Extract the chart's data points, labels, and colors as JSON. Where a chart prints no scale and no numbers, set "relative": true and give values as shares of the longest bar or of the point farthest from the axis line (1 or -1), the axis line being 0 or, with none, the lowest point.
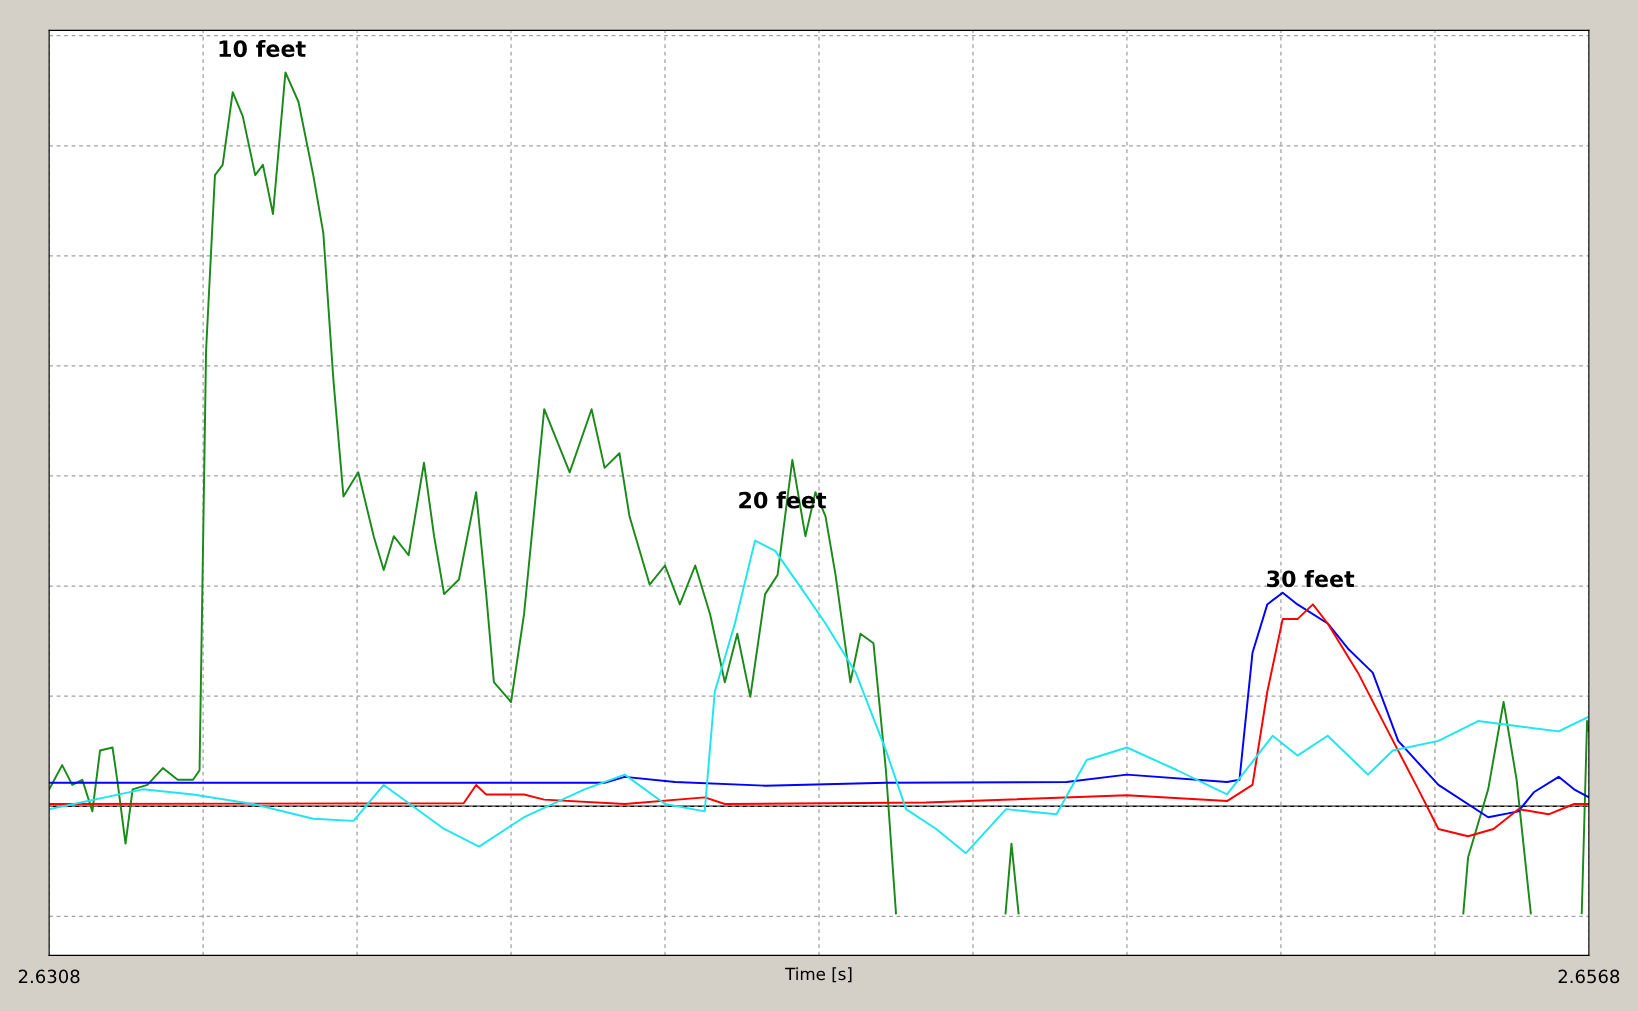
{
  "chart_data": {
    "type": "line",
    "relative": true,
    "xlabel": "Time [s]",
    "xlim": [
      2.6308,
      2.6568
    ],
    "xticks": [
      2.6308,
      {
        "value": 2.6334,
        "label": null
      },
      {
        "value": 2.636,
        "label": null
      },
      {
        "value": 2.6386,
        "label": null
      },
      {
        "value": 2.6412,
        "label": null
      },
      {
        "value": 2.6438,
        "label": null
      },
      {
        "value": 2.6464,
        "label": null
      },
      {
        "value": 2.649,
        "label": null
      },
      {
        "value": 2.6516,
        "label": null
      },
      {
        "value": 2.6542,
        "label": null
      },
      2.6568
    ],
    "grid": true,
    "legend": false,
    "line_style": "solid",
    "marker": "none",
    "ref_lines": [
      {
        "axis": "y",
        "value": 0,
        "color": "#000000"
      }
    ],
    "annotations": [
      "10 feet",
      "20 feet",
      "30 feet"
    ],
    "series": [
      {
        "color": "#1a8a1a",
        "x": [
          2.6308,
          2.63102,
          2.63119,
          2.63136,
          2.63153,
          2.63166,
          2.63187,
          2.63195,
          2.63209,
          2.63221,
          2.63246,
          2.63272,
          2.63297,
          2.63323,
          2.63334,
          2.63345,
          2.6336,
          2.63373,
          2.6339,
          2.63407,
          2.63428,
          2.63441,
          2.63458,
          2.63479,
          2.63501,
          2.63526,
          2.63543,
          2.6356,
          2.63577,
          2.63602,
          2.63628,
          2.63645,
          2.63662,
          2.63687,
          2.63713,
          2.6373,
          2.63747,
          2.63772,
          2.63801,
          2.63818,
          2.63831,
          2.6386,
          2.63882,
          2.63916,
          2.63959,
          2.63996,
          2.64018,
          2.64043,
          2.6406,
          2.64094,
          2.6412,
          2.64145,
          2.64171,
          2.64196,
          2.64221,
          2.64242,
          2.64264,
          2.64289,
          2.6431,
          2.64335,
          2.64357,
          2.64374,
          2.64391,
          2.64408,
          2.64433,
          2.6445,
          2.64472,
          2.64493,
          2.6451,
          2.64561,
          2.64695,
          2.64705,
          2.64717,
          2.65069,
          2.65468,
          2.65476,
          2.6551,
          2.65536,
          2.65558,
          2.65582,
          2.65629,
          2.65668,
          2.65677,
          2.6568
        ],
        "values": [
          0.023,
          0.056,
          0.029,
          0.036,
          -0.007,
          0.076,
          0.08,
          0.036,
          -0.051,
          0.023,
          0.029,
          0.052,
          0.036,
          0.036,
          0.049,
          0.621,
          0.86,
          0.874,
          0.973,
          0.94,
          0.86,
          0.874,
          0.807,
          1.0,
          0.96,
          0.86,
          0.781,
          0.581,
          0.422,
          0.455,
          0.368,
          0.322,
          0.368,
          0.342,
          0.468,
          0.368,
          0.289,
          0.309,
          0.428,
          0.289,
          0.169,
          0.142,
          0.262,
          0.541,
          0.455,
          0.541,
          0.461,
          0.481,
          0.395,
          0.302,
          0.328,
          0.275,
          0.328,
          0.262,
          0.169,
          0.235,
          0.149,
          0.289,
          0.315,
          0.472,
          0.368,
          0.428,
          0.395,
          0.315,
          0.169,
          0.235,
          0.222,
          0.049,
          -0.146,
          null,
          -0.146,
          -0.051,
          -0.146,
          null,
          -0.146,
          -0.07,
          0.023,
          0.142,
          0.036,
          -0.146,
          null,
          -0.146,
          0.116,
          0.102
        ]
      },
      {
        "color": "#0000ff",
        "x": [
          2.6308,
          2.64018,
          2.64052,
          2.64137,
          2.64289,
          2.64493,
          2.64798,
          2.649,
          2.65069,
          2.6509,
          2.65112,
          2.65137,
          2.65163,
          2.65188,
          2.65239,
          2.65273,
          2.65315,
          2.65358,
          2.65426,
          2.6551,
          2.65561,
          2.65587,
          2.65629,
          2.65655,
          2.6568
        ],
        "values": [
          0.032,
          0.032,
          0.04,
          0.033,
          0.028,
          0.032,
          0.033,
          0.043,
          0.033,
          0.036,
          0.209,
          0.275,
          0.291,
          0.275,
          0.249,
          0.215,
          0.182,
          0.089,
          0.029,
          -0.015,
          -0.007,
          0.019,
          0.04,
          0.023,
          0.012
        ]
      },
      {
        "color": "#ff0000",
        "x": [
          2.6308,
          2.6378,
          2.63801,
          2.63818,
          2.63882,
          2.63916,
          2.64052,
          2.64187,
          2.64221,
          2.64561,
          2.649,
          2.65069,
          2.65112,
          2.65137,
          2.65163,
          2.65188,
          2.65214,
          2.65239,
          2.6529,
          2.65341,
          2.65392,
          2.65426,
          2.65476,
          2.65519,
          2.65561,
          2.65612,
          2.65655,
          2.6568
        ],
        "values": [
          0.003,
          0.004,
          0.029,
          0.016,
          0.016,
          0.009,
          0.003,
          0.012,
          0.003,
          0.005,
          0.015,
          0.007,
          0.029,
          0.156,
          0.255,
          0.255,
          0.275,
          0.249,
          0.182,
          0.102,
          0.023,
          -0.031,
          -0.041,
          -0.031,
          -0.004,
          -0.011,
          0.003,
          0.003
        ]
      },
      {
        "color": "#1ee6ee",
        "x": [
          2.6308,
          2.63238,
          2.63323,
          2.63424,
          2.63526,
          2.63594,
          2.63645,
          2.63747,
          2.63806,
          2.63882,
          2.63984,
          2.64052,
          2.6412,
          2.64187,
          2.64204,
          2.64238,
          2.64272,
          2.64306,
          2.64357,
          2.64391,
          2.64442,
          2.64493,
          2.64527,
          2.64578,
          2.64628,
          2.64696,
          2.64781,
          2.64832,
          2.649,
          2.64985,
          2.65069,
          2.65146,
          2.65188,
          2.65239,
          2.65307,
          2.65349,
          2.65426,
          2.65493,
          2.65561,
          2.65629,
          2.6568
        ],
        "values": [
          -0.004,
          0.023,
          0.016,
          0.003,
          -0.017,
          -0.02,
          0.029,
          -0.031,
          -0.055,
          -0.015,
          0.023,
          0.043,
          0.003,
          -0.007,
          0.156,
          0.249,
          0.362,
          0.348,
          0.289,
          0.249,
          0.182,
          0.076,
          -0.004,
          -0.031,
          -0.064,
          -0.004,
          -0.011,
          0.063,
          0.08,
          0.049,
          0.016,
          0.096,
          0.069,
          0.096,
          0.043,
          0.076,
          0.089,
          0.116,
          0.109,
          0.102,
          0.122
        ]
      }
    ]
  }
}
